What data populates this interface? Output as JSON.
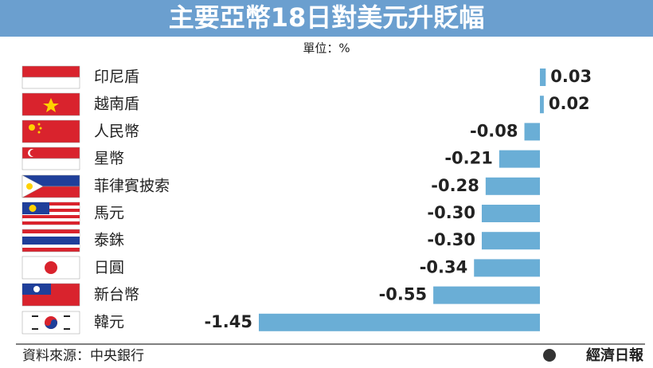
{
  "chart_data": {
    "type": "bar",
    "orientation": "horizontal",
    "title": "主要亞幣18日對美元升貶幅",
    "unit": "單位：%",
    "categories": [
      "印尼盾",
      "越南盾",
      "人民幣",
      "星幣",
      "菲律賓披索",
      "馬元",
      "泰銖",
      "日圓",
      "新台幣",
      "韓元"
    ],
    "values": [
      0.03,
      0.02,
      -0.08,
      -0.21,
      -0.28,
      -0.3,
      -0.3,
      -0.34,
      -0.55,
      -1.45
    ],
    "value_labels": [
      "0.03",
      "0.02",
      "-0.08",
      "-0.21",
      "-0.28",
      "-0.30",
      "-0.30",
      "-0.34",
      "-0.55",
      "-1.45"
    ],
    "color": "#6aaed6",
    "source": "資料來源：中央銀行",
    "publisher": "經濟日報"
  }
}
